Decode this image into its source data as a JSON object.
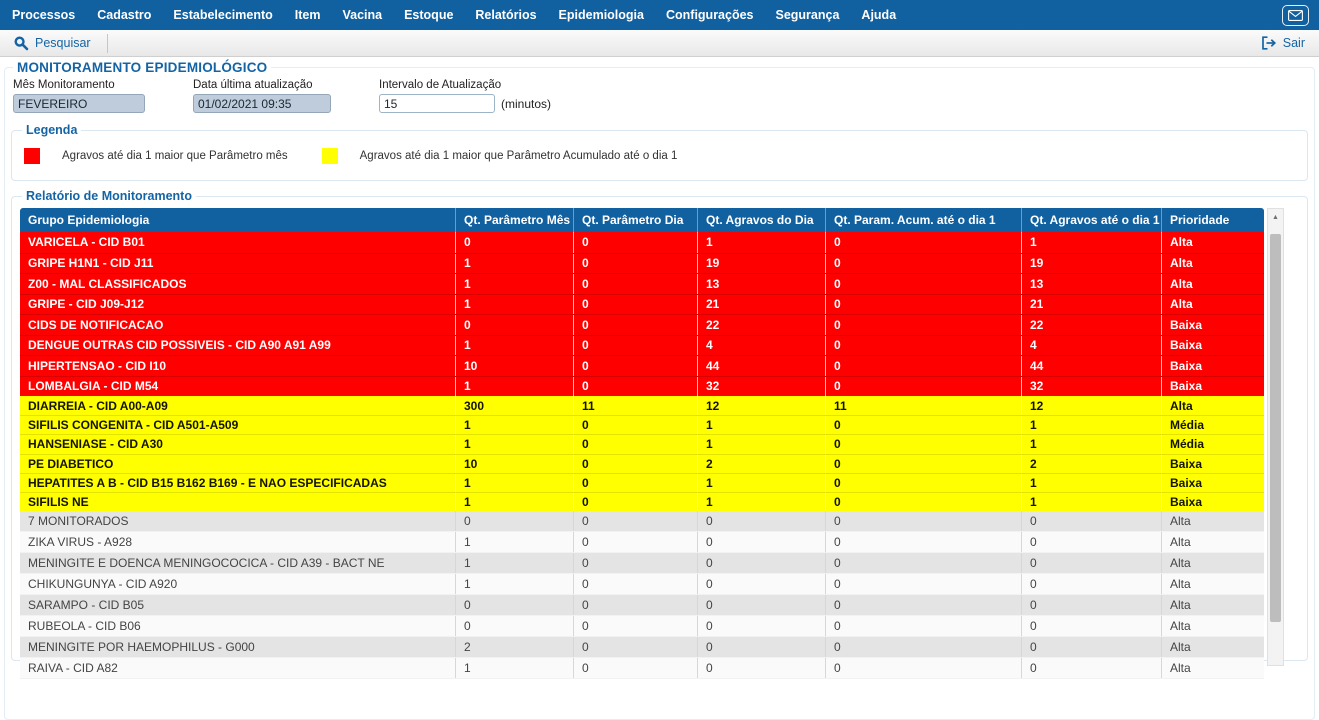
{
  "menubar": {
    "items": [
      "Processos",
      "Cadastro",
      "Estabelecimento",
      "Item",
      "Vacina",
      "Estoque",
      "Relatórios",
      "Epidemiologia",
      "Configurações",
      "Segurança",
      "Ajuda"
    ]
  },
  "toolbar": {
    "search_label": "Pesquisar",
    "exit_label": "Sair"
  },
  "page": {
    "title": "MONITORAMENTO EPIDEMIOLÓGICO"
  },
  "form": {
    "fields": [
      {
        "label": "Mês Monitoramento",
        "value": "FEVEREIRO",
        "disabled": true
      },
      {
        "label": "Data última atualização",
        "value": "01/02/2021 09:35",
        "disabled": true
      },
      {
        "label": "Intervalo de Atualização",
        "value": "15",
        "disabled": false,
        "suffix": "(minutos)"
      }
    ]
  },
  "legend": {
    "title": "Legenda",
    "items": [
      {
        "color": "#fe0000",
        "label": "Agravos até dia 1 maior que Parâmetro mês"
      },
      {
        "color": "#ffff00",
        "label": "Agravos até dia 1 maior que Parâmetro Acumulado até o dia 1"
      }
    ]
  },
  "report": {
    "title": "Relatório de Monitoramento",
    "columns": [
      "Grupo Epidemiologia",
      "Qt. Parâmetro Mês",
      "Qt. Parâmetro Dia",
      "Qt. Agravos do Dia",
      "Qt. Param. Acum. até o dia 1",
      "Qt. Agravos até o dia 1",
      "Prioridade"
    ],
    "rows": [
      {
        "style": "red",
        "cells": [
          "VARICELA - CID B01",
          "0",
          "0",
          "1",
          "0",
          "1",
          "Alta"
        ]
      },
      {
        "style": "red",
        "cells": [
          "GRIPE H1N1 - CID J11",
          "1",
          "0",
          "19",
          "0",
          "19",
          "Alta"
        ]
      },
      {
        "style": "red",
        "cells": [
          "Z00 - MAL CLASSIFICADOS",
          "1",
          "0",
          "13",
          "0",
          "13",
          "Alta"
        ]
      },
      {
        "style": "red",
        "cells": [
          "GRIPE - CID J09-J12",
          "1",
          "0",
          "21",
          "0",
          "21",
          "Alta"
        ]
      },
      {
        "style": "red",
        "cells": [
          "CIDS DE NOTIFICACAO",
          "0",
          "0",
          "22",
          "0",
          "22",
          "Baixa"
        ]
      },
      {
        "style": "red",
        "cells": [
          "DENGUE OUTRAS CID POSSIVEIS - CID A90 A91 A99",
          "1",
          "0",
          "4",
          "0",
          "4",
          "Baixa"
        ]
      },
      {
        "style": "red",
        "cells": [
          "HIPERTENSAO - CID I10",
          "10",
          "0",
          "44",
          "0",
          "44",
          "Baixa"
        ]
      },
      {
        "style": "red",
        "cells": [
          "LOMBALGIA - CID M54",
          "1",
          "0",
          "32",
          "0",
          "32",
          "Baixa"
        ]
      },
      {
        "style": "yellow",
        "cells": [
          "DIARREIA - CID A00-A09",
          "300",
          "11",
          "12",
          "11",
          "12",
          "Alta"
        ]
      },
      {
        "style": "yellow",
        "cells": [
          "SIFILIS CONGENITA - CID A501-A509",
          "1",
          "0",
          "1",
          "0",
          "1",
          "Média"
        ]
      },
      {
        "style": "yellow",
        "cells": [
          "HANSENIASE - CID A30",
          "1",
          "0",
          "1",
          "0",
          "1",
          "Média"
        ]
      },
      {
        "style": "yellow",
        "cells": [
          "PE DIABETICO",
          "10",
          "0",
          "2",
          "0",
          "2",
          "Baixa"
        ]
      },
      {
        "style": "yellow",
        "cells": [
          "HEPATITES A B - CID B15 B162 B169 - E NAO ESPECIFICADAS",
          "1",
          "0",
          "1",
          "0",
          "1",
          "Baixa"
        ]
      },
      {
        "style": "yellow",
        "cells": [
          "SIFILIS NE",
          "1",
          "0",
          "1",
          "0",
          "1",
          "Baixa"
        ]
      },
      {
        "style": "normal",
        "cells": [
          "7 MONITORADOS",
          "0",
          "0",
          "0",
          "0",
          "0",
          "Alta"
        ]
      },
      {
        "style": "normal",
        "cells": [
          "ZIKA VIRUS - A928",
          "1",
          "0",
          "0",
          "0",
          "0",
          "Alta"
        ]
      },
      {
        "style": "normal",
        "cells": [
          "MENINGITE E DOENCA MENINGOCOCICA - CID A39 - BACT NE",
          "1",
          "0",
          "0",
          "0",
          "0",
          "Alta"
        ]
      },
      {
        "style": "normal",
        "cells": [
          "CHIKUNGUNYA - CID A920",
          "1",
          "0",
          "0",
          "0",
          "0",
          "Alta"
        ]
      },
      {
        "style": "normal",
        "cells": [
          "SARAMPO - CID B05",
          "0",
          "0",
          "0",
          "0",
          "0",
          "Alta"
        ]
      },
      {
        "style": "normal",
        "cells": [
          "RUBEOLA - CID B06",
          "0",
          "0",
          "0",
          "0",
          "0",
          "Alta"
        ]
      },
      {
        "style": "normal",
        "cells": [
          "MENINGITE POR HAEMOPHILUS - G000",
          "2",
          "0",
          "0",
          "0",
          "0",
          "Alta"
        ]
      },
      {
        "style": "normal",
        "cells": [
          "RAIVA - CID A82",
          "1",
          "0",
          "0",
          "0",
          "0",
          "Alta"
        ]
      }
    ]
  },
  "colors": {
    "menu_blue": "#1160a0",
    "link_blue": "#1464a5",
    "alert_red": "#fe0000",
    "alert_yellow": "#ffff00"
  }
}
